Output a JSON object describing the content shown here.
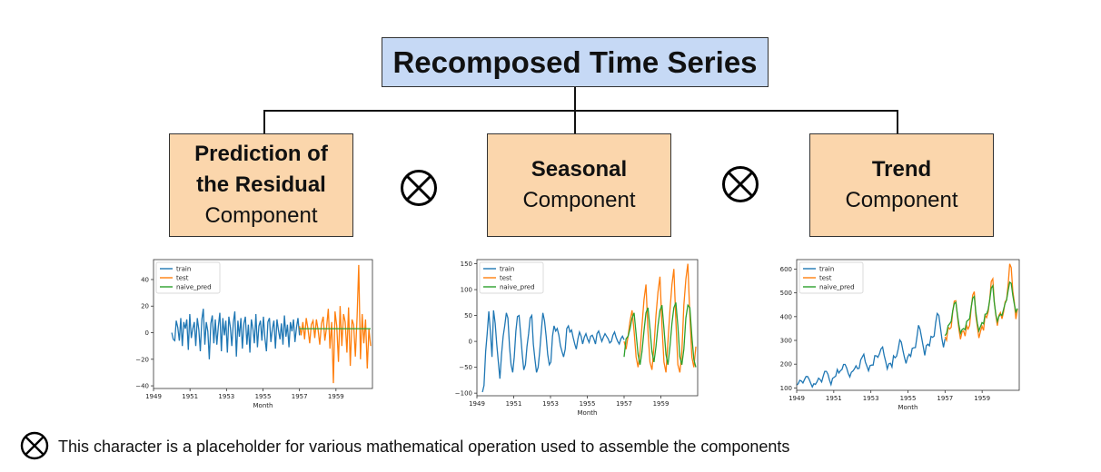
{
  "title": "Recomposed Time Series",
  "components": [
    {
      "bold": [
        "Prediction of",
        "the Residual"
      ],
      "normal": "Component"
    },
    {
      "bold": [
        "Seasonal"
      ],
      "normal": "Component"
    },
    {
      "bold": [
        "Trend"
      ],
      "normal": "Component"
    }
  ],
  "operator_icon": "circled-times-icon",
  "footnote": "This character is a placeholder for various mathematical  operation used to assemble the components",
  "colors": {
    "train": "#1f77b4",
    "test": "#ff7f0e",
    "naive_pred": "#2ca02c",
    "title_box": "#c6d9f5",
    "component_box": "#fbd6ac"
  },
  "chart_data": [
    {
      "type": "line",
      "xlabel": "Month",
      "ylabel": "",
      "xlim": [
        1949,
        1961
      ],
      "ylim": [
        -42,
        55
      ],
      "xticks": [
        "1949",
        "1951",
        "1953",
        "1955",
        "1957",
        "1959"
      ],
      "yticks": [
        "−40",
        "−20",
        "0",
        "20",
        "40"
      ],
      "ytick_values": [
        -40,
        -20,
        0,
        20,
        40
      ],
      "legend": [
        "train",
        "test",
        "naive_pred"
      ],
      "legend_position": "top-left",
      "series": [
        {
          "name": "train",
          "x_start": 1950.0,
          "x_end": 1957.0,
          "values": [
            0,
            -5,
            -6,
            9,
            4,
            -6,
            11,
            -10,
            8,
            3,
            10,
            -13,
            14,
            -4,
            3,
            8,
            -10,
            11,
            2,
            -14,
            10,
            18,
            -9,
            8,
            1,
            -20,
            7,
            13,
            -8,
            10,
            -9,
            5,
            15,
            -14,
            11,
            -2,
            9,
            -15,
            12,
            4,
            -10,
            8,
            16,
            -18,
            9,
            -3,
            11,
            -12,
            7,
            12,
            -9,
            6,
            -15,
            10,
            3,
            -8,
            14,
            -11,
            5,
            9,
            -6,
            12,
            -4,
            -14,
            8,
            11,
            -7,
            3,
            9,
            -12,
            10,
            2,
            -5,
            7,
            -9,
            13,
            -3,
            6,
            -11,
            8,
            1,
            10,
            -7,
            4,
            11,
            -2
          ]
        },
        {
          "name": "test",
          "x_start": 1957.0,
          "x_end": 1960.9,
          "values": [
            5,
            -2,
            8,
            -5,
            11,
            3,
            -8,
            6,
            9,
            -4,
            10,
            2,
            -9,
            7,
            12,
            -6,
            4,
            18,
            -12,
            8,
            -38,
            16,
            5,
            -22,
            20,
            -10,
            14,
            8,
            -15,
            19,
            -25,
            10,
            6,
            -18,
            12,
            51,
            -20,
            14,
            -8,
            10,
            -27,
            3,
            -10
          ]
        },
        {
          "name": "naive_pred",
          "x_start": 1957.0,
          "x_end": 1960.9,
          "values": [
            3,
            3
          ]
        }
      ]
    },
    {
      "type": "line",
      "xlabel": "Month",
      "ylabel": "",
      "xlim": [
        1949,
        1961
      ],
      "ylim": [
        -105,
        158
      ],
      "xticks": [
        "1949",
        "1951",
        "1953",
        "1955",
        "1957",
        "1959"
      ],
      "yticks": [
        "−100",
        "−50",
        "0",
        "50",
        "100",
        "150"
      ],
      "ytick_values": [
        -100,
        -50,
        0,
        50,
        100,
        150
      ],
      "legend": [
        "train",
        "test",
        "naive_pred"
      ],
      "legend_position": "top-left",
      "series": [
        {
          "name": "train",
          "x_start": 1949.3,
          "x_end": 1957.0,
          "values": [
            -98,
            -85,
            -20,
            15,
            58,
            20,
            -30,
            60,
            35,
            -5,
            -40,
            -72,
            -25,
            10,
            30,
            55,
            45,
            -10,
            -45,
            -60,
            -30,
            20,
            48,
            50,
            15,
            -25,
            -55,
            -45,
            -10,
            15,
            45,
            50,
            -5,
            -35,
            -60,
            -50,
            -20,
            20,
            55,
            40,
            10,
            -25,
            -45,
            -40,
            10,
            30,
            20,
            25,
            12,
            -8,
            -20,
            -30,
            -15,
            25,
            30,
            18,
            22,
            8,
            -5,
            -15,
            5,
            18,
            10,
            -5,
            8,
            15,
            5,
            -2,
            10,
            12,
            5,
            -5,
            15,
            20,
            10,
            0,
            8,
            15,
            10,
            5,
            -3,
            0,
            12,
            18,
            8,
            0,
            -5,
            5,
            10,
            3
          ]
        },
        {
          "name": "test",
          "x_start": 1957.0,
          "x_end": 1960.9,
          "values": [
            0,
            -15,
            10,
            40,
            60,
            20,
            -30,
            -50,
            -20,
            30,
            80,
            110,
            20,
            -40,
            -55,
            -10,
            50,
            95,
            125,
            30,
            -40,
            -60,
            0,
            60,
            110,
            140,
            40,
            -45,
            -60,
            -20,
            70,
            120,
            150,
            50,
            -30,
            -50,
            -10
          ]
        },
        {
          "name": "naive_pred",
          "x_start": 1957.0,
          "x_end": 1960.9,
          "values": [
            -30,
            5,
            10,
            25,
            45,
            55,
            15,
            -25,
            -45,
            -20,
            20,
            55,
            65,
            25,
            -20,
            -40,
            -10,
            30,
            60,
            70,
            25,
            -25,
            -45,
            -10,
            35,
            65,
            75,
            30,
            -30,
            -45,
            -15,
            45,
            70,
            65,
            10,
            -35,
            -50
          ]
        }
      ]
    },
    {
      "type": "line",
      "xlabel": "Month",
      "ylabel": "",
      "xlim": [
        1949,
        1961
      ],
      "ylim": [
        90,
        640
      ],
      "xticks": [
        "1949",
        "1951",
        "1953",
        "1955",
        "1957",
        "1959"
      ],
      "yticks": [
        "100",
        "200",
        "300",
        "400",
        "500",
        "600"
      ],
      "ytick_values": [
        100,
        200,
        300,
        400,
        500,
        600
      ],
      "legend": [
        "train",
        "test",
        "naive_pred"
      ],
      "legend_position": "top-left",
      "series": [
        {
          "name": "train",
          "x_start": 1949.0,
          "x_end": 1957.0,
          "values": [
            112,
            118,
            132,
            129,
            121,
            135,
            148,
            148,
            136,
            119,
            104,
            118,
            115,
            126,
            141,
            135,
            125,
            149,
            170,
            170,
            158,
            133,
            114,
            140,
            145,
            150,
            178,
            163,
            172,
            178,
            199,
            199,
            184,
            162,
            146,
            166,
            171,
            180,
            193,
            181,
            183,
            218,
            230,
            242,
            209,
            191,
            172,
            194,
            196,
            196,
            236,
            235,
            229,
            243,
            264,
            272,
            237,
            211,
            180,
            201,
            204,
            188,
            235,
            227,
            234,
            264,
            302,
            293,
            259,
            229,
            203,
            229,
            242,
            233,
            267,
            269,
            270,
            315,
            364,
            347,
            312,
            274,
            237,
            278,
            284,
            277,
            317,
            313,
            318,
            374,
            413,
            405,
            355,
            306,
            271,
            306
          ]
        },
        {
          "name": "test",
          "x_start": 1957.0,
          "x_end": 1960.9,
          "values": [
            315,
            301,
            356,
            348,
            355,
            422,
            465,
            467,
            404,
            347,
            305,
            336,
            340,
            318,
            362,
            348,
            363,
            435,
            491,
            505,
            404,
            359,
            310,
            337,
            360,
            342,
            406,
            396,
            420,
            472,
            548,
            559,
            463,
            407,
            362,
            405,
            417,
            391,
            419,
            461,
            472,
            535,
            622,
            606,
            508,
            461,
            390,
            432
          ]
        },
        {
          "name": "naive_pred",
          "x_start": 1957.0,
          "x_end": 1960.9,
          "values": [
            320,
            330,
            362,
            370,
            380,
            425,
            455,
            460,
            410,
            365,
            330,
            345,
            350,
            345,
            380,
            385,
            392,
            440,
            478,
            485,
            420,
            372,
            340,
            358,
            375,
            370,
            410,
            412,
            430,
            470,
            520,
            530,
            460,
            410,
            380,
            400,
            410,
            405,
            430,
            455,
            470,
            510,
            545,
            540,
            490,
            452,
            420,
            435
          ]
        }
      ]
    }
  ]
}
